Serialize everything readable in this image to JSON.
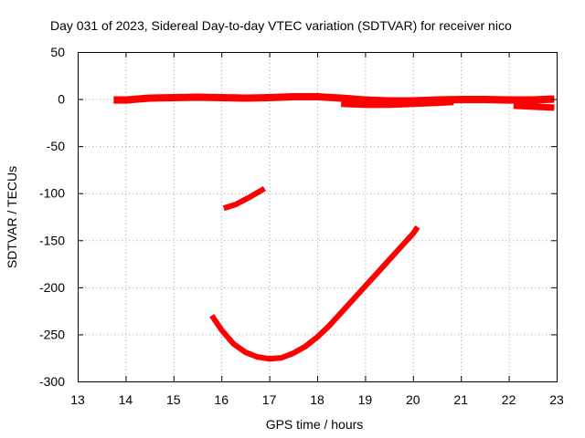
{
  "chart_data": {
    "type": "scatter",
    "title": "Day 031 of 2023, Sidereal Day-to-day VTEC variation (SDTVAR) for receiver nico",
    "xlabel": "GPS time / hours",
    "ylabel": "SDTVAR / TECUs",
    "xlim": [
      13,
      23
    ],
    "ylim": [
      -300,
      50
    ],
    "xticks": [
      13,
      14,
      15,
      16,
      17,
      18,
      19,
      20,
      21,
      22,
      23
    ],
    "yticks": [
      50,
      0,
      -50,
      -100,
      -150,
      -200,
      -250,
      -300
    ],
    "grid": true,
    "series_color": "#ff0000",
    "series": [
      {
        "name": "main band",
        "points": [
          [
            13.75,
            -1
          ],
          [
            14.0,
            -1
          ],
          [
            14.5,
            1
          ],
          [
            15.0,
            1.5
          ],
          [
            15.5,
            2
          ],
          [
            16.0,
            1.5
          ],
          [
            16.5,
            1
          ],
          [
            17.0,
            1.5
          ],
          [
            17.5,
            2.5
          ],
          [
            18.0,
            2.5
          ],
          [
            18.5,
            1
          ],
          [
            19.0,
            -1
          ],
          [
            19.5,
            -2
          ],
          [
            20.0,
            -2
          ],
          [
            20.5,
            -1
          ],
          [
            21.0,
            -0.5
          ],
          [
            21.5,
            -0.5
          ],
          [
            22.0,
            -1
          ],
          [
            22.5,
            -1
          ],
          [
            22.95,
            0
          ]
        ],
        "band": 4
      },
      {
        "name": "offset segment 1",
        "points": [
          [
            18.5,
            -5
          ],
          [
            19.0,
            -6
          ],
          [
            19.5,
            -6
          ],
          [
            20.0,
            -5
          ],
          [
            20.5,
            -4
          ],
          [
            20.85,
            -3
          ]
        ],
        "band": 3
      },
      {
        "name": "offset segment 2",
        "points": [
          [
            22.1,
            -7
          ],
          [
            22.5,
            -8
          ],
          [
            22.95,
            -9
          ]
        ],
        "band": 3
      },
      {
        "name": "short arc",
        "points": [
          [
            16.05,
            -116
          ],
          [
            16.3,
            -112
          ],
          [
            16.6,
            -104
          ],
          [
            16.9,
            -95
          ]
        ],
        "band": 2
      },
      {
        "name": "long arc",
        "points": [
          [
            15.8,
            -230
          ],
          [
            16.0,
            -245
          ],
          [
            16.25,
            -260
          ],
          [
            16.5,
            -269
          ],
          [
            16.75,
            -274
          ],
          [
            17.0,
            -276
          ],
          [
            17.25,
            -275
          ],
          [
            17.5,
            -270
          ],
          [
            17.75,
            -263
          ],
          [
            18.0,
            -253
          ],
          [
            18.25,
            -241
          ],
          [
            18.5,
            -227
          ],
          [
            18.75,
            -213
          ],
          [
            19.0,
            -199
          ],
          [
            19.25,
            -185
          ],
          [
            19.5,
            -171
          ],
          [
            19.75,
            -157
          ],
          [
            20.0,
            -143
          ],
          [
            20.1,
            -136
          ]
        ],
        "band": 2
      }
    ]
  }
}
